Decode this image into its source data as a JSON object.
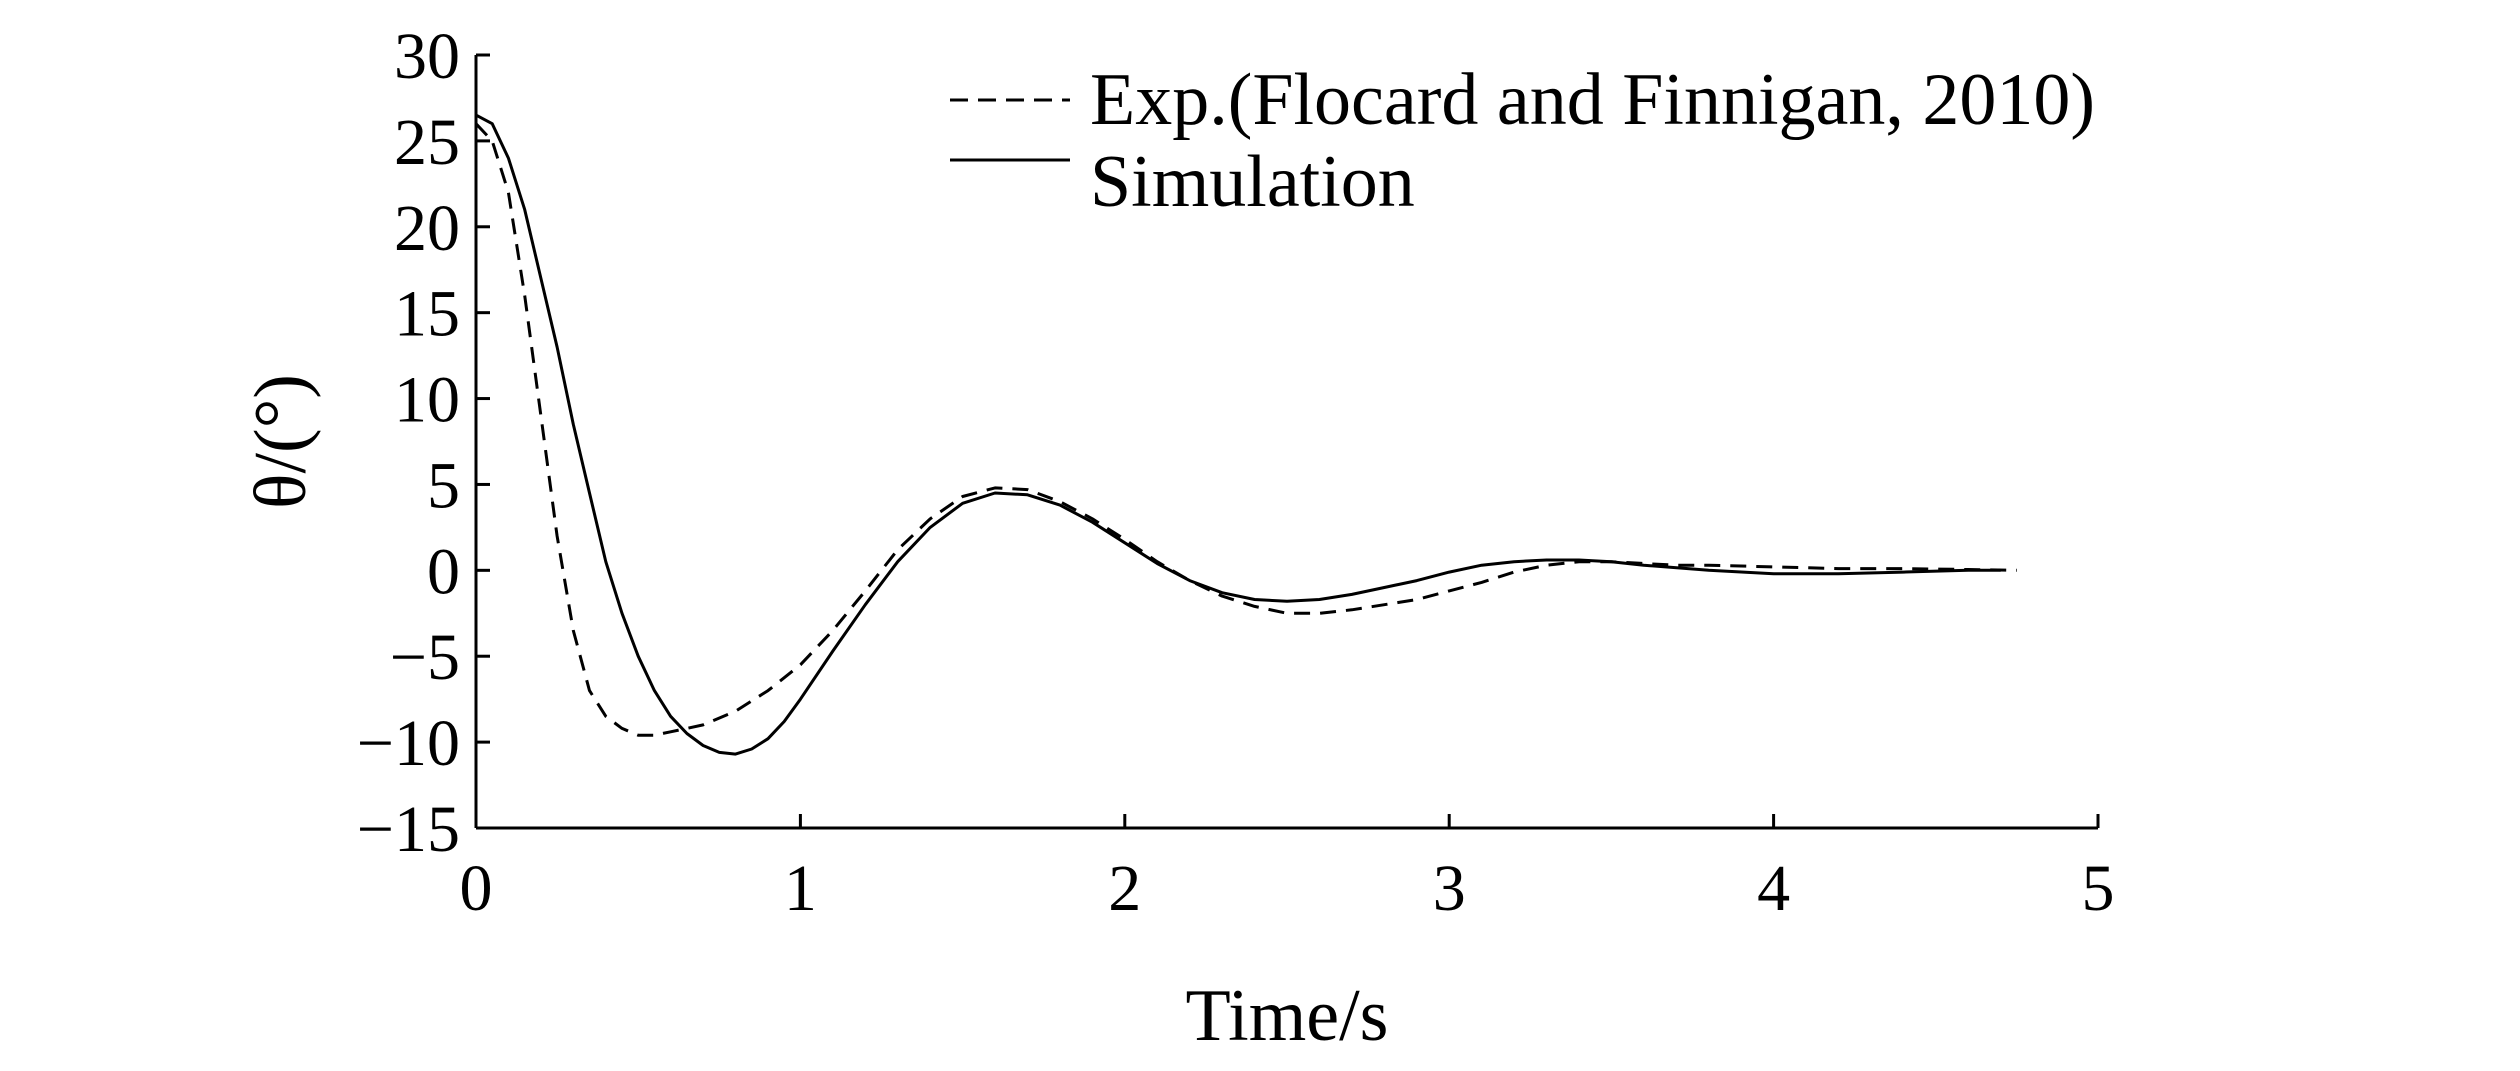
{
  "chart_data": {
    "type": "line",
    "xlabel": "Time/s",
    "ylabel": "θ/(°)",
    "xlim": [
      0,
      5
    ],
    "ylim": [
      -15,
      30
    ],
    "xticks": [
      0,
      1,
      2,
      3,
      4,
      5
    ],
    "yticks": [
      -15,
      -10,
      -5,
      0,
      5,
      10,
      15,
      20,
      25,
      30
    ],
    "legend_position": "top-right",
    "grid": false,
    "series": [
      {
        "name": "Exp.(Flocard and Finnigan, 2010)",
        "style": "dashed",
        "x": [
          0,
          0.05,
          0.1,
          0.15,
          0.2,
          0.25,
          0.3,
          0.35,
          0.4,
          0.45,
          0.5,
          0.55,
          0.6,
          0.65,
          0.7,
          0.8,
          0.9,
          1.0,
          1.1,
          1.2,
          1.3,
          1.4,
          1.5,
          1.6,
          1.7,
          1.8,
          1.9,
          2.0,
          2.1,
          2.2,
          2.3,
          2.4,
          2.5,
          2.6,
          2.7,
          2.8,
          2.9,
          3.0,
          3.1,
          3.2,
          3.3,
          3.4,
          3.5,
          3.6,
          3.7,
          3.8,
          4.0,
          4.2,
          4.4,
          4.6,
          4.75
        ],
        "values": [
          26,
          25,
          22,
          16,
          9,
          2,
          -3.5,
          -7,
          -8.5,
          -9.2,
          -9.6,
          -9.6,
          -9.4,
          -9.2,
          -9,
          -8.2,
          -7,
          -5.5,
          -3.5,
          -1.2,
          1.2,
          3,
          4.3,
          4.8,
          4.7,
          4,
          3,
          1.8,
          0.5,
          -0.6,
          -1.5,
          -2.1,
          -2.5,
          -2.5,
          -2.3,
          -2,
          -1.7,
          -1.2,
          -0.7,
          -0.1,
          0.3,
          0.5,
          0.5,
          0.4,
          0.3,
          0.3,
          0.2,
          0.1,
          0.1,
          0.05,
          0
        ]
      },
      {
        "name": "Simulation",
        "style": "solid",
        "x": [
          0,
          0.05,
          0.1,
          0.15,
          0.2,
          0.25,
          0.3,
          0.35,
          0.4,
          0.45,
          0.5,
          0.55,
          0.6,
          0.65,
          0.7,
          0.75,
          0.8,
          0.85,
          0.9,
          0.95,
          1.0,
          1.1,
          1.2,
          1.3,
          1.4,
          1.5,
          1.6,
          1.7,
          1.8,
          1.9,
          2.0,
          2.1,
          2.2,
          2.3,
          2.4,
          2.5,
          2.6,
          2.7,
          2.8,
          2.9,
          3.0,
          3.1,
          3.2,
          3.3,
          3.4,
          3.5,
          3.6,
          3.8,
          4.0,
          4.2,
          4.4,
          4.6,
          4.7
        ],
        "values": [
          26.5,
          26,
          24,
          21,
          17,
          13,
          8.5,
          4.5,
          0.5,
          -2.5,
          -5,
          -7,
          -8.5,
          -9.5,
          -10.2,
          -10.6,
          -10.7,
          -10.4,
          -9.8,
          -8.8,
          -7.5,
          -4.7,
          -2,
          0.5,
          2.5,
          3.9,
          4.5,
          4.4,
          3.8,
          2.8,
          1.6,
          0.4,
          -0.6,
          -1.3,
          -1.7,
          -1.8,
          -1.7,
          -1.4,
          -1,
          -0.6,
          -0.1,
          0.3,
          0.5,
          0.6,
          0.6,
          0.5,
          0.3,
          0,
          -0.2,
          -0.2,
          -0.1,
          0,
          0
        ]
      }
    ]
  }
}
